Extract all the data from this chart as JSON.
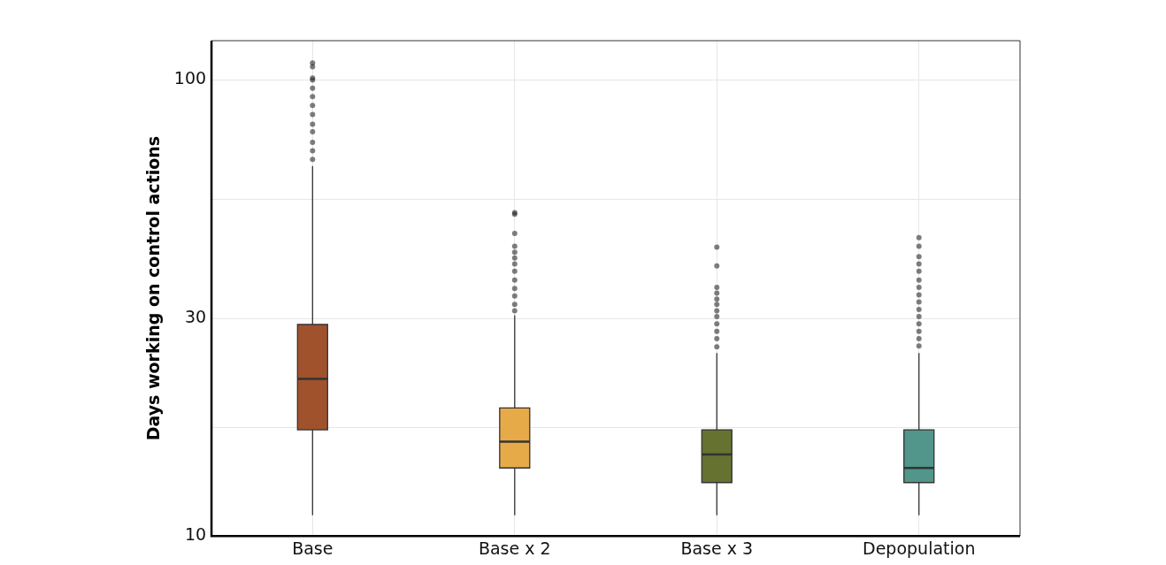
{
  "chart_data": {
    "type": "box",
    "ylabel": "Days working on control actions",
    "log": true,
    "grid": true,
    "categories": [
      "Base",
      "Base x 2",
      "Base x 3",
      "Depopulation"
    ],
    "colors": [
      "#a0522d",
      "#e6aa48",
      "#667230",
      "#52958a"
    ],
    "ylim": [
      10,
      122
    ],
    "yticks": [
      10,
      {
        "value": 17.32,
        "label": null
      },
      30,
      {
        "value": 54.77,
        "label": null
      },
      100
    ],
    "boxes": [
      {
        "low": 11.1,
        "q1": 17.1,
        "median": 22.1,
        "q3": 29.1,
        "high": 64.8,
        "outliers": [
          67,
          70,
          73,
          77,
          80,
          84,
          88,
          92,
          96,
          100,
          101,
          107,
          109
        ]
      },
      {
        "low": 11.1,
        "q1": 14.1,
        "median": 16.1,
        "q3": 19.1,
        "high": 30.5,
        "outliers": [
          31.2,
          32.2,
          33.6,
          34.9,
          36.4,
          38.1,
          39.5,
          40.7,
          41.9,
          43.2,
          46.1,
          50.8,
          51.2
        ]
      },
      {
        "low": 11.1,
        "q1": 13.1,
        "median": 15.1,
        "q3": 17.1,
        "high": 25.2,
        "outliers": [
          26.0,
          27.1,
          28.1,
          29.2,
          30.3,
          31.2,
          32.2,
          33.1,
          34.1,
          35.1,
          39.1,
          43.0
        ]
      },
      {
        "low": 11.1,
        "q1": 13.1,
        "median": 14.1,
        "q3": 17.1,
        "high": 25.2,
        "outliers": [
          26.1,
          27.1,
          28.1,
          29.2,
          30.3,
          31.4,
          32.6,
          33.8,
          35.1,
          36.4,
          38.1,
          39.5,
          41.0,
          43.2,
          45.1
        ]
      }
    ]
  }
}
